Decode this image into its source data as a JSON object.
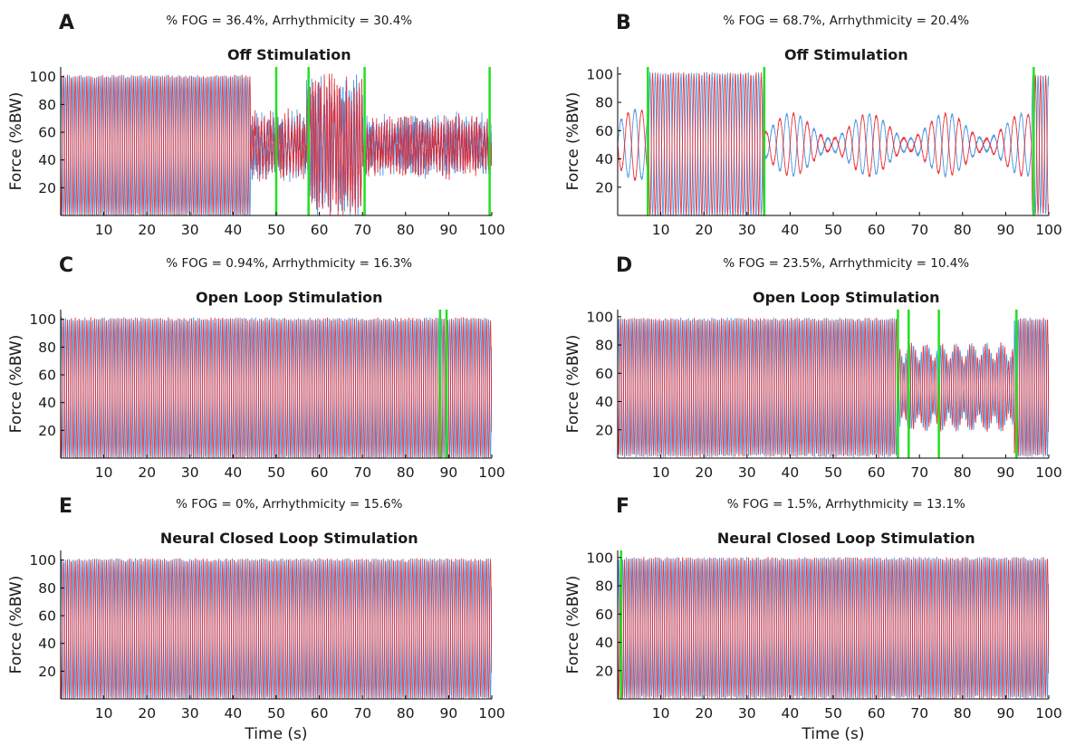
{
  "figure": {
    "colors": {
      "left_foot": "#2e86de",
      "right_foot": "#e8141b",
      "fog_marker": "#21e021",
      "axis": "#000000",
      "text": "#1a1a1a"
    }
  },
  "chart_data": [
    {
      "type": "line",
      "panel_label": "A",
      "stats": "% FOG = 36.4%, Arrhythmicity = 30.4%",
      "title": "Off Stimulation",
      "ylabel": "Force (%BW)",
      "xlabel": "",
      "xlim": [
        0,
        100
      ],
      "ylim": [
        0,
        107
      ],
      "xticks": [
        10,
        20,
        30,
        40,
        50,
        60,
        70,
        80,
        90,
        100
      ],
      "yticks": [
        20,
        40,
        60,
        80,
        100
      ],
      "series": [
        {
          "color": "#2e86de",
          "step_period_s": 0.9,
          "phase": 0
        },
        {
          "color": "#e8141b",
          "step_period_s": 0.9,
          "phase": 0.5
        }
      ],
      "segments": [
        {
          "x_start": 0,
          "x_end": 44,
          "mode": "rhythmic",
          "amplitude": 50
        },
        {
          "x_start": 44,
          "x_end": 57,
          "mode": "irregular",
          "amplitude": 18
        },
        {
          "x_start": 57,
          "x_end": 70,
          "mode": "irregular",
          "amplitude": 42
        },
        {
          "x_start": 70,
          "x_end": 100,
          "mode": "irregular",
          "amplitude": 15
        }
      ],
      "fog_markers": [
        50,
        57.5,
        70.5,
        99.5
      ]
    },
    {
      "type": "line",
      "panel_label": "B",
      "stats": "% FOG = 68.7%, Arrhythmicity = 20.4%",
      "title": "Off Stimulation",
      "ylabel": "Force (%BW)",
      "xlabel": "",
      "xlim": [
        0,
        100
      ],
      "ylim": [
        0,
        105
      ],
      "xticks": [
        10,
        20,
        30,
        40,
        50,
        60,
        70,
        80,
        90,
        100
      ],
      "yticks": [
        20,
        40,
        60,
        80,
        100
      ],
      "series": [
        {
          "color": "#2e86de",
          "step_period_s": 1.2,
          "phase": 0
        },
        {
          "color": "#e8141b",
          "step_period_s": 1.2,
          "phase": 0.5
        }
      ],
      "segments": [
        {
          "x_start": 0,
          "x_end": 7,
          "mode": "oscillating",
          "amplitude": 25
        },
        {
          "x_start": 7,
          "x_end": 34,
          "mode": "rhythmic",
          "amplitude": 50
        },
        {
          "x_start": 34,
          "x_end": 96,
          "mode": "oscillating",
          "amplitude": 22
        },
        {
          "x_start": 96,
          "x_end": 100,
          "mode": "rhythmic",
          "amplitude": 48
        }
      ],
      "fog_markers": [
        7,
        34,
        96.5
      ]
    },
    {
      "type": "line",
      "panel_label": "C",
      "stats": "% FOG = 0.94%, Arrhythmicity = 16.3%",
      "title": "Open Loop Stimulation",
      "ylabel": "Force (%BW)",
      "xlabel": "",
      "xlim": [
        0,
        100
      ],
      "ylim": [
        0,
        107
      ],
      "xticks": [
        10,
        20,
        30,
        40,
        50,
        60,
        70,
        80,
        90,
        100
      ],
      "yticks": [
        20,
        40,
        60,
        80,
        100
      ],
      "series": [
        {
          "color": "#2e86de",
          "step_period_s": 0.9,
          "phase": 0
        },
        {
          "color": "#e8141b",
          "step_period_s": 0.9,
          "phase": 0.5
        }
      ],
      "segments": [
        {
          "x_start": 0,
          "x_end": 100,
          "mode": "rhythmic",
          "amplitude": 50
        }
      ],
      "fog_markers": [
        88,
        89.5
      ]
    },
    {
      "type": "line",
      "panel_label": "D",
      "stats": "% FOG = 23.5%, Arrhythmicity = 10.4%",
      "title": "Open Loop Stimulation",
      "ylabel": "Force (%BW)",
      "xlabel": "",
      "xlim": [
        0,
        100
      ],
      "ylim": [
        0,
        105
      ],
      "xticks": [
        10,
        20,
        30,
        40,
        50,
        60,
        70,
        80,
        90,
        100
      ],
      "yticks": [
        20,
        40,
        60,
        80,
        100
      ],
      "series": [
        {
          "color": "#2e86de",
          "step_period_s": 0.9,
          "phase": 0
        },
        {
          "color": "#e8141b",
          "step_period_s": 0.9,
          "phase": 0.5
        }
      ],
      "segments": [
        {
          "x_start": 0,
          "x_end": 65,
          "mode": "rhythmic",
          "amplitude": 48
        },
        {
          "x_start": 65,
          "x_end": 92,
          "mode": "reduced",
          "amplitude": 30
        },
        {
          "x_start": 92,
          "x_end": 100,
          "mode": "rhythmic",
          "amplitude": 48
        }
      ],
      "fog_markers": [
        65,
        67.5,
        74.5,
        92.5
      ]
    },
    {
      "type": "line",
      "panel_label": "E",
      "stats": "% FOG = 0%, Arrhythmicity = 15.6%",
      "title": "Neural Closed Loop Stimulation",
      "ylabel": "Force (%BW)",
      "xlabel": "Time (s)",
      "xlim": [
        0,
        100
      ],
      "ylim": [
        0,
        107
      ],
      "xticks": [
        10,
        20,
        30,
        40,
        50,
        60,
        70,
        80,
        90,
        100
      ],
      "yticks": [
        20,
        40,
        60,
        80,
        100
      ],
      "series": [
        {
          "color": "#2e86de",
          "step_period_s": 0.9,
          "phase": 0
        },
        {
          "color": "#e8141b",
          "step_period_s": 0.9,
          "phase": 0.5
        }
      ],
      "segments": [
        {
          "x_start": 0,
          "x_end": 100,
          "mode": "rhythmic",
          "amplitude": 50
        }
      ],
      "fog_markers": []
    },
    {
      "type": "line",
      "panel_label": "F",
      "stats": "% FOG = 1.5%, Arrhythmicity = 13.1%",
      "title": "Neural Closed Loop Stimulation",
      "ylabel": "Force (%BW)",
      "xlabel": "Time (s)",
      "xlim": [
        0,
        100
      ],
      "ylim": [
        0,
        105
      ],
      "xticks": [
        10,
        20,
        30,
        40,
        50,
        60,
        70,
        80,
        90,
        100
      ],
      "yticks": [
        20,
        40,
        60,
        80,
        100
      ],
      "series": [
        {
          "color": "#2e86de",
          "step_period_s": 0.9,
          "phase": 0
        },
        {
          "color": "#e8141b",
          "step_period_s": 0.9,
          "phase": 0.5
        }
      ],
      "segments": [
        {
          "x_start": 0,
          "x_end": 100,
          "mode": "rhythmic",
          "amplitude": 49
        }
      ],
      "fog_markers": [
        0.8
      ]
    }
  ]
}
